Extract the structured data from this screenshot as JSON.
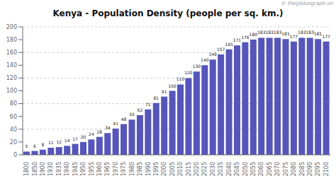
{
  "chart_data": {
    "type": "bar",
    "title": "Kenya - Population Density (people per sq. km.)",
    "annotations": [
      "© theglobalgraph.on"
    ],
    "categories": [
      "1800",
      "1850",
      "1900",
      "1930",
      "1935",
      "1940",
      "1945",
      "1950",
      "1955",
      "1960",
      "1965",
      "1970",
      "1975",
      "1980",
      "1985",
      "1990",
      "1995",
      "2000",
      "2005",
      "2010",
      "2015",
      "2020",
      "2025",
      "2030",
      "2035",
      "2040",
      "2045",
      "2050",
      "2055",
      "2060",
      "2065",
      "2070",
      "2075",
      "2080",
      "2085",
      "2090",
      "2095",
      "2100"
    ],
    "values": [
      5,
      6,
      8,
      11,
      12,
      14,
      17,
      20,
      24,
      28,
      34,
      41,
      48,
      55,
      62,
      71,
      81,
      91,
      100,
      110,
      120,
      130,
      140,
      149,
      157,
      165,
      171,
      176,
      180,
      183,
      183,
      183,
      181,
      177,
      183,
      183,
      181,
      177
    ],
    "color": "#5555bb",
    "ylim": [
      0,
      200
    ],
    "yticks": [
      0,
      20,
      40,
      60,
      80,
      100,
      120,
      140,
      160,
      180,
      200
    ],
    "grid": true,
    "data_labels": true
  }
}
